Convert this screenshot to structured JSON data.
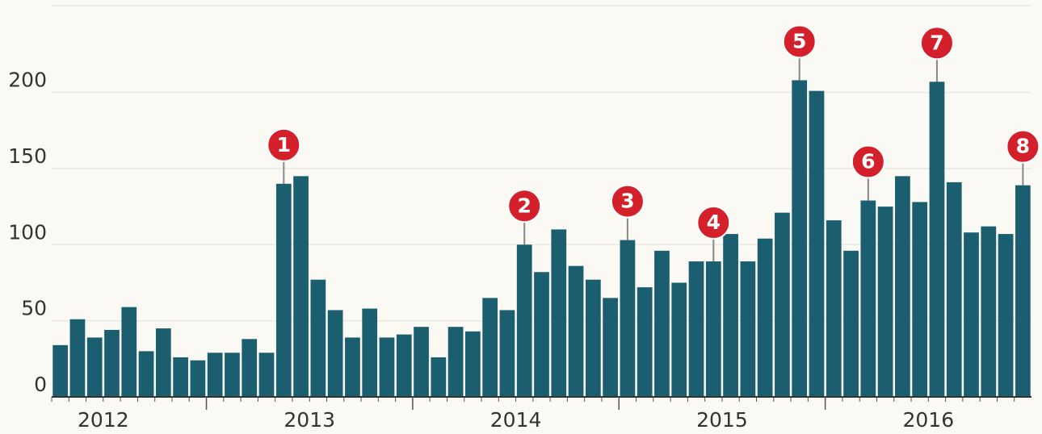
{
  "chart_data": {
    "type": "bar",
    "categories": [
      null,
      null,
      null,
      null,
      null,
      null,
      null,
      null,
      null,
      null,
      null,
      null,
      null,
      null,
      null,
      null,
      null,
      null,
      null,
      null,
      null,
      null,
      null,
      null,
      null,
      null,
      null,
      null,
      null,
      null,
      null,
      null,
      null,
      null,
      null,
      null,
      null,
      null,
      null,
      null,
      null,
      null,
      null,
      null,
      null,
      null,
      null,
      null,
      null,
      null,
      null,
      null,
      null,
      null,
      null,
      null,
      null
    ],
    "values": [
      34,
      51,
      39,
      44,
      59,
      30,
      45,
      26,
      24,
      29,
      29,
      38,
      29,
      140,
      145,
      77,
      57,
      39,
      58,
      39,
      41,
      46,
      26,
      46,
      43,
      65,
      57,
      100,
      82,
      110,
      86,
      77,
      65,
      103,
      72,
      96,
      75,
      89,
      89,
      107,
      89,
      104,
      121,
      208,
      201,
      116,
      96,
      129,
      125,
      145,
      128,
      207,
      141,
      108,
      112,
      107,
      139
    ],
    "color": "#1b5e70",
    "ylim": [
      0,
      257
    ],
    "yticks": [
      0,
      50,
      100,
      150,
      200
    ],
    "grid": true,
    "xticks": [
      {
        "value": -3,
        "label": "2012"
      },
      {
        "value": 9,
        "label": "2013"
      },
      {
        "value": 21,
        "label": "2014"
      },
      {
        "value": 33,
        "label": "2015"
      },
      {
        "value": 45,
        "label": "2016"
      }
    ],
    "annotations": [
      {
        "label": "1",
        "index": 13
      },
      {
        "label": "2",
        "index": 27
      },
      {
        "label": "3",
        "index": 33
      },
      {
        "label": "4",
        "index": 38
      },
      {
        "label": "5",
        "index": 43
      },
      {
        "label": "6",
        "index": 47
      },
      {
        "label": "7",
        "index": 51
      },
      {
        "label": "8",
        "index": 56
      }
    ],
    "annotation_color": "#d3202a"
  }
}
